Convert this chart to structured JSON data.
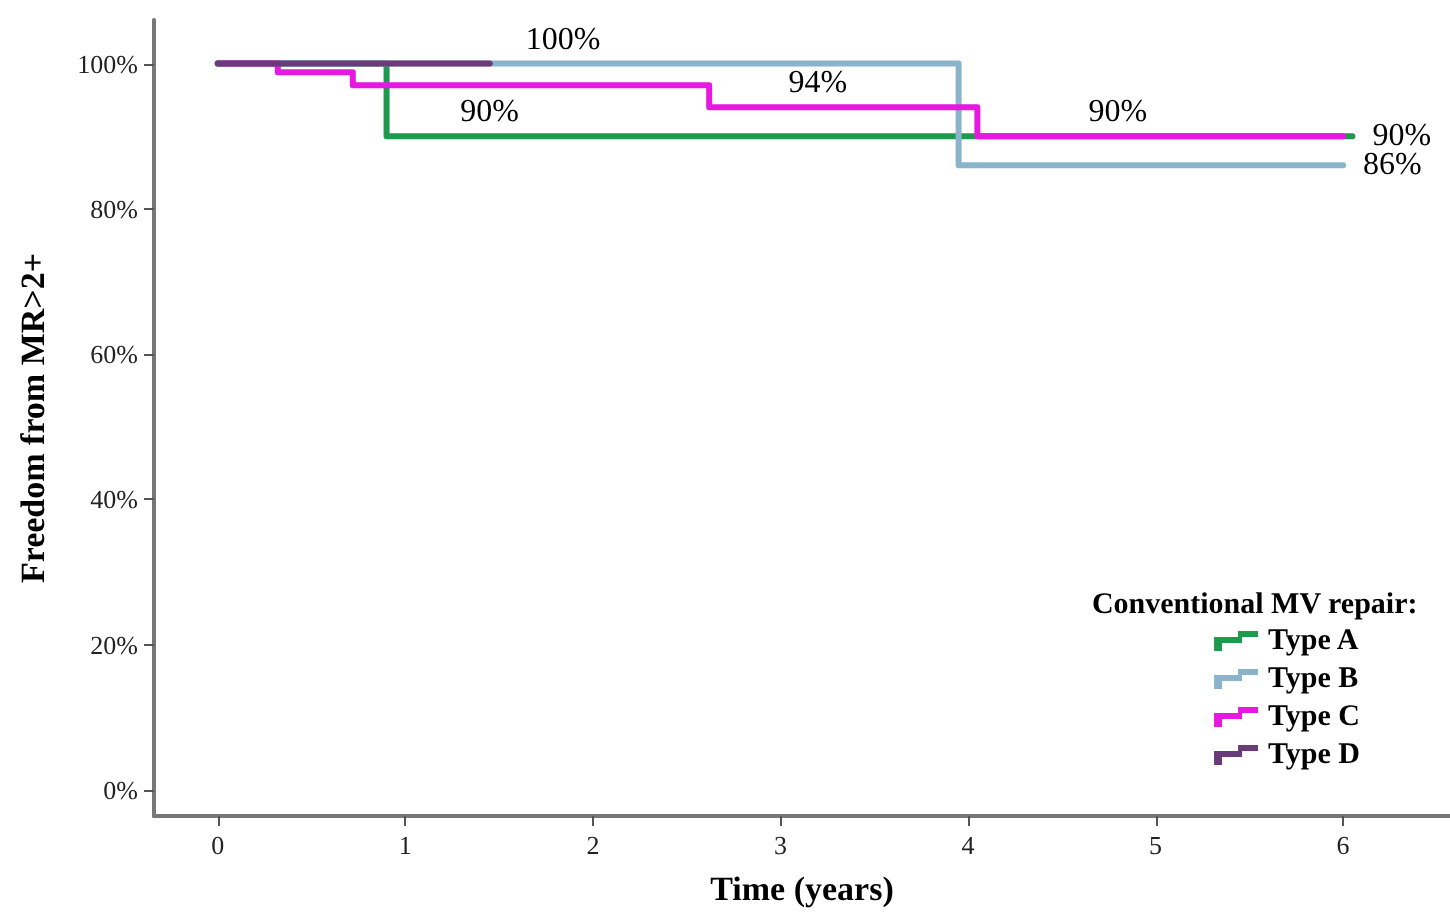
{
  "chart_data": {
    "type": "step",
    "xlabel": "Time (years)",
    "ylabel": "Freedom from MR>2+",
    "legend_title": "Conventional MV repair:",
    "xlim": [
      -0.34,
      6.57
    ],
    "xticks": [
      0,
      1,
      2,
      3,
      4,
      5,
      6
    ],
    "ylim": [
      -3.6,
      106
    ],
    "yticks": [
      {
        "value": 0,
        "label": "0%"
      },
      {
        "value": 20,
        "label": "20%"
      },
      {
        "value": 40,
        "label": "40%"
      },
      {
        "value": 60,
        "label": "60%"
      },
      {
        "value": 80,
        "label": "80%"
      },
      {
        "value": 100,
        "label": "100%"
      }
    ],
    "grid": false,
    "legend": "bottom right",
    "marker": "none",
    "line_style": "solid",
    "series": [
      {
        "name": "Type A",
        "color": "#1e9a4e",
        "x": [
          0,
          0.9,
          6.05
        ],
        "values": [
          100,
          90,
          90
        ]
      },
      {
        "name": "Type B",
        "color": "#8ab4cc",
        "x": [
          0,
          3.95,
          6.0
        ],
        "values": [
          100,
          86,
          86
        ]
      },
      {
        "name": "Type C",
        "color": "#e619e0",
        "x": [
          0,
          0.32,
          0.72,
          2.62,
          4.05,
          6.0
        ],
        "values": [
          100,
          98.8,
          97,
          94,
          90,
          90
        ]
      },
      {
        "name": "Type D",
        "color": "#6b3a78",
        "x": [
          0,
          1.45
        ],
        "values": [
          100,
          100
        ]
      }
    ],
    "annotations": [
      {
        "text": "100%",
        "x": 1.6,
        "y": 100
      },
      {
        "text": "90%",
        "x": 1.25,
        "y": 90
      },
      {
        "text": "94%",
        "x": 3.0,
        "y": 94
      },
      {
        "text": "90%",
        "x": 4.6,
        "y": 90
      },
      {
        "text": "90%",
        "x": 6.05,
        "y": 90
      },
      {
        "text": "86%",
        "x": 6.0,
        "y": 86
      }
    ]
  }
}
